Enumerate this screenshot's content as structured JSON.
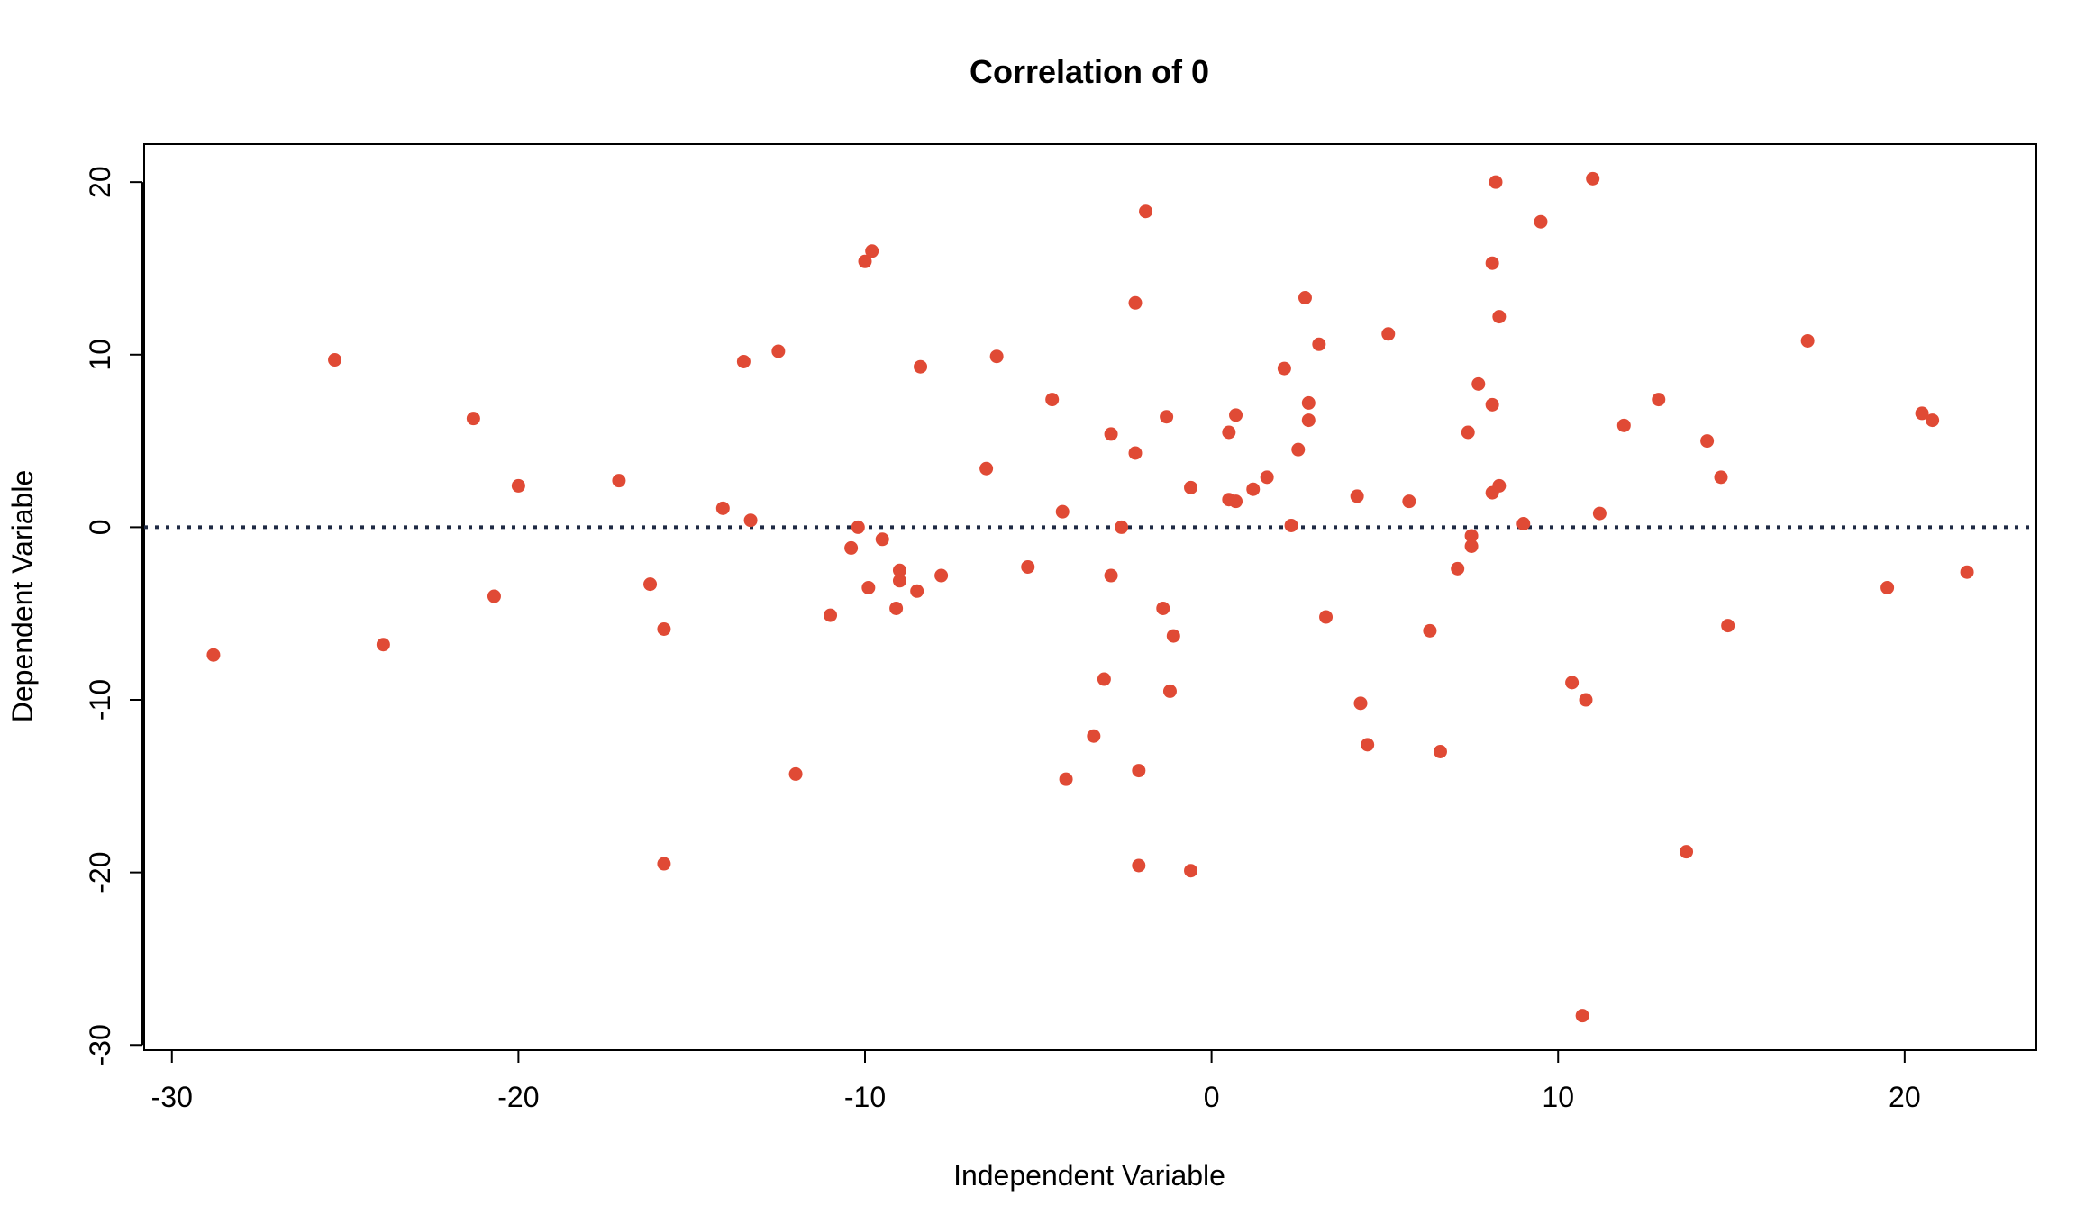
{
  "chart_data": {
    "type": "scatter",
    "title": "Correlation of 0",
    "xlabel": "Independent Variable",
    "ylabel": "Dependent Variable",
    "xlim": [
      -30.8,
      23.8
    ],
    "ylim": [
      -30.3,
      22.2
    ],
    "x_ticks": [
      -30,
      -20,
      -10,
      0,
      10,
      20
    ],
    "x_tick_labels": [
      "-30",
      "-20",
      "-10",
      "0",
      "10",
      "20"
    ],
    "y_ticks": [
      -30,
      -20,
      -10,
      0,
      10,
      20
    ],
    "y_tick_labels": [
      "-30",
      "-20",
      "-10",
      "0",
      "10",
      "20"
    ],
    "grid": false,
    "reference_line": {
      "y": 0,
      "style": "dotted",
      "color": "#1f2a44"
    },
    "point_color": "#e04a35",
    "points": [
      [
        -28.8,
        -7.4
      ],
      [
        -25.3,
        9.7
      ],
      [
        -23.9,
        -6.8
      ],
      [
        -21.3,
        6.3
      ],
      [
        -20.7,
        -4.0
      ],
      [
        -20.0,
        2.4
      ],
      [
        -17.1,
        2.7
      ],
      [
        -16.2,
        -3.3
      ],
      [
        -15.8,
        -5.9
      ],
      [
        -15.8,
        -19.5
      ],
      [
        -14.1,
        1.1
      ],
      [
        -13.5,
        9.6
      ],
      [
        -13.3,
        0.4
      ],
      [
        -12.5,
        10.2
      ],
      [
        -12.0,
        -14.3
      ],
      [
        -11.0,
        -5.1
      ],
      [
        -10.4,
        -1.2
      ],
      [
        -10.2,
        0.0
      ],
      [
        -10.0,
        15.4
      ],
      [
        -9.9,
        -3.5
      ],
      [
        -9.8,
        16.0
      ],
      [
        -9.5,
        -0.7
      ],
      [
        -9.1,
        -4.7
      ],
      [
        -9.0,
        -2.5
      ],
      [
        -9.0,
        -3.1
      ],
      [
        -8.5,
        -3.7
      ],
      [
        -8.4,
        9.3
      ],
      [
        -7.8,
        -2.8
      ],
      [
        -6.5,
        3.4
      ],
      [
        -6.2,
        9.9
      ],
      [
        -5.3,
        -2.3
      ],
      [
        -4.6,
        7.4
      ],
      [
        -4.3,
        0.9
      ],
      [
        -4.2,
        -14.6
      ],
      [
        -3.4,
        -12.1
      ],
      [
        -3.1,
        -8.8
      ],
      [
        -2.9,
        -2.8
      ],
      [
        -2.9,
        5.4
      ],
      [
        -2.6,
        0.0
      ],
      [
        -2.2,
        13.0
      ],
      [
        -2.2,
        4.3
      ],
      [
        -2.1,
        -14.1
      ],
      [
        -2.1,
        -19.6
      ],
      [
        -1.9,
        18.3
      ],
      [
        -1.4,
        -4.7
      ],
      [
        -1.3,
        6.4
      ],
      [
        -1.2,
        -9.5
      ],
      [
        -1.1,
        -6.3
      ],
      [
        -0.6,
        -19.9
      ],
      [
        -0.6,
        2.3
      ],
      [
        0.5,
        1.6
      ],
      [
        0.5,
        5.5
      ],
      [
        0.7,
        1.5
      ],
      [
        0.7,
        6.5
      ],
      [
        1.2,
        2.2
      ],
      [
        1.6,
        2.9
      ],
      [
        2.1,
        9.2
      ],
      [
        2.3,
        0.1
      ],
      [
        2.5,
        4.5
      ],
      [
        2.7,
        13.3
      ],
      [
        2.8,
        7.2
      ],
      [
        2.8,
        6.2
      ],
      [
        3.1,
        10.6
      ],
      [
        3.3,
        -5.2
      ],
      [
        4.2,
        1.8
      ],
      [
        4.3,
        -10.2
      ],
      [
        4.5,
        -12.6
      ],
      [
        5.1,
        11.2
      ],
      [
        5.7,
        1.5
      ],
      [
        6.3,
        -6.0
      ],
      [
        6.6,
        -13.0
      ],
      [
        7.1,
        -2.4
      ],
      [
        7.4,
        5.5
      ],
      [
        7.5,
        -0.5
      ],
      [
        7.5,
        -1.1
      ],
      [
        7.7,
        8.3
      ],
      [
        8.1,
        2.0
      ],
      [
        8.1,
        15.3
      ],
      [
        8.1,
        7.1
      ],
      [
        8.2,
        20.0
      ],
      [
        8.3,
        12.2
      ],
      [
        8.3,
        2.4
      ],
      [
        9.0,
        0.2
      ],
      [
        9.5,
        17.7
      ],
      [
        10.4,
        -9.0
      ],
      [
        10.7,
        -28.3
      ],
      [
        10.8,
        -10.0
      ],
      [
        11.0,
        20.2
      ],
      [
        11.2,
        0.8
      ],
      [
        11.9,
        5.9
      ],
      [
        12.9,
        7.4
      ],
      [
        13.7,
        -18.8
      ],
      [
        14.3,
        5.0
      ],
      [
        14.7,
        2.9
      ],
      [
        14.9,
        -5.7
      ],
      [
        17.2,
        10.8
      ],
      [
        19.5,
        -3.5
      ],
      [
        20.5,
        6.6
      ],
      [
        20.8,
        6.2
      ],
      [
        21.8,
        -2.6
      ]
    ]
  }
}
